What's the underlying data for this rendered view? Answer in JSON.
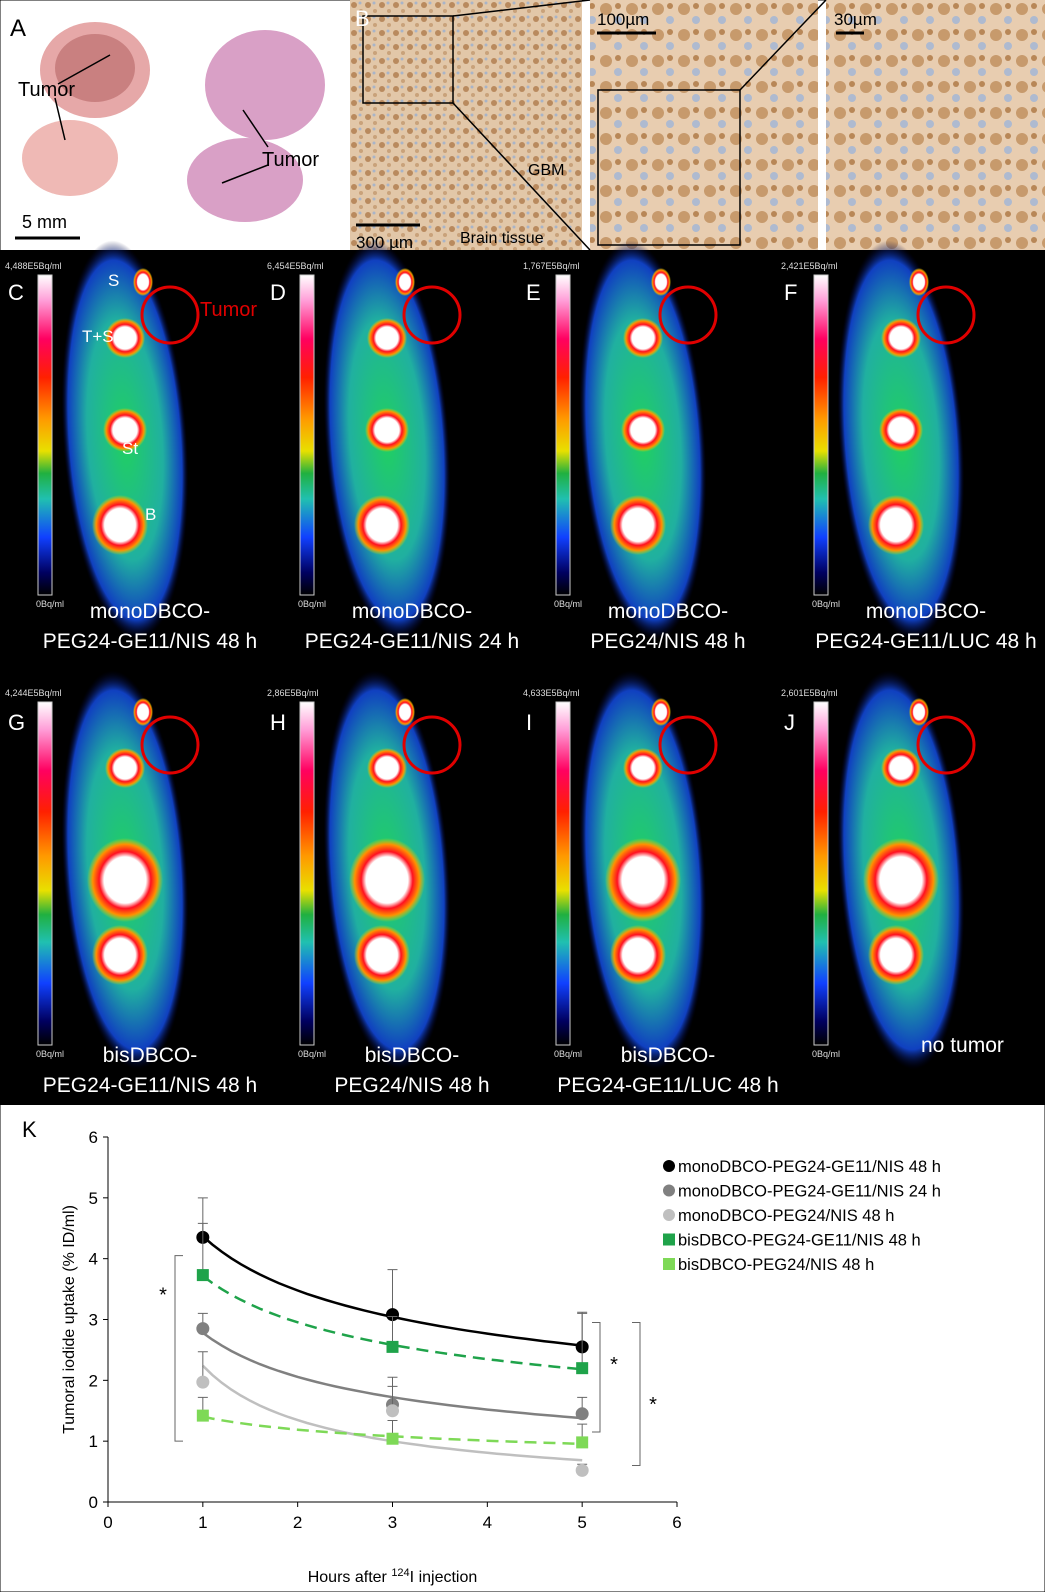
{
  "panel_a": {
    "label": "A",
    "annotations": [
      "Tumor",
      "Tumor"
    ],
    "scale_bar": "5 mm"
  },
  "panel_b": {
    "label": "B",
    "scale_bars": [
      "300 µm",
      "100µm",
      "30µm"
    ],
    "annotations": [
      "GBM",
      "Brain tissue"
    ]
  },
  "pet_panels": [
    {
      "label": "C",
      "scale_max": "4,488E5Bq/ml",
      "scale_min": "0Bq/ml",
      "caption": [
        "monoDBCO-",
        "PEG24-GE11/NIS 48 h"
      ],
      "organs": [
        "S",
        "T+SG",
        "St",
        "B"
      ],
      "tumor_label": "Tumor"
    },
    {
      "label": "D",
      "scale_max": "6,454E5Bq/ml",
      "scale_min": "0Bq/ml",
      "caption": [
        "monoDBCO-",
        "PEG24-GE11/NIS 24 h"
      ]
    },
    {
      "label": "E",
      "scale_max": "1,767E5Bq/ml",
      "scale_min": "0Bq/ml",
      "caption": [
        "monoDBCO-",
        "PEG24/NIS 48 h"
      ]
    },
    {
      "label": "F",
      "scale_max": "2,421E5Bq/ml",
      "scale_min": "0Bq/ml",
      "caption": [
        "monoDBCO-",
        "PEG24-GE11/LUC 48 h"
      ]
    },
    {
      "label": "G",
      "scale_max": "4,244E5Bq/ml",
      "scale_min": "0Bq/ml",
      "caption": [
        "bisDBCO-",
        "PEG24-GE11/NIS 48 h"
      ]
    },
    {
      "label": "H",
      "scale_max": "2,86E5Bq/ml",
      "scale_min": "0Bq/ml",
      "caption": [
        "bisDBCO-",
        "PEG24/NIS 48 h"
      ]
    },
    {
      "label": "I",
      "scale_max": "4,633E5Bq/ml",
      "scale_min": "0Bq/ml",
      "caption": [
        "bisDBCO-",
        "PEG24-GE11/LUC 48 h"
      ]
    },
    {
      "label": "J",
      "scale_max": "2,601E5Bq/ml",
      "scale_min": "0Bq/ml",
      "caption": [
        "no tumor"
      ]
    }
  ],
  "chart_data": {
    "type": "line",
    "panel_label": "K",
    "y_label": "Tumoral iodide uptake (% ID/ml)",
    "x_label": [
      "Hours after ",
      "124",
      "I injection"
    ],
    "x": [
      1,
      3,
      5
    ],
    "xlim": [
      0,
      6
    ],
    "xticks": [
      0,
      1,
      2,
      3,
      4,
      5,
      6
    ],
    "ylim": [
      0,
      6
    ],
    "yticks": [
      0,
      1,
      2,
      3,
      4,
      5,
      6
    ],
    "series": [
      {
        "name": "monoDBCO-PEG24-GE11/NIS 48 h",
        "color": "#000000",
        "marker": "circle",
        "dash": false,
        "values": [
          4.35,
          3.08,
          2.55
        ],
        "errors": [
          0.65,
          0.74,
          0.57
        ]
      },
      {
        "name": "monoDBCO-PEG24-GE11/NIS 24 h",
        "color": "#808080",
        "marker": "circle",
        "dash": false,
        "values": [
          2.85,
          1.6,
          1.45
        ],
        "errors": [
          0.25,
          0.45,
          0.27
        ]
      },
      {
        "name": "monoDBCO-PEG24/NIS 48 h",
        "color": "#bfbfbf",
        "marker": "circle",
        "dash": false,
        "values": [
          1.97,
          1.5,
          0.52
        ],
        "errors": [
          0.5,
          0.4,
          0.1
        ]
      },
      {
        "name": "bisDBCO-PEG24-GE11/NIS 48 h",
        "color": "#1fa34a",
        "marker": "square",
        "dash": true,
        "values": [
          3.73,
          2.55,
          2.2
        ],
        "errors": [
          0.85,
          0.5,
          0.9
        ]
      },
      {
        "name": "bisDBCO-PEG24/NIS 48 h",
        "color": "#7ed957",
        "marker": "square",
        "dash": true,
        "values": [
          1.42,
          1.04,
          0.98
        ],
        "errors": [
          0.3,
          0.3,
          0.3
        ]
      }
    ],
    "annotations": [
      "*",
      "*",
      "*"
    ]
  }
}
